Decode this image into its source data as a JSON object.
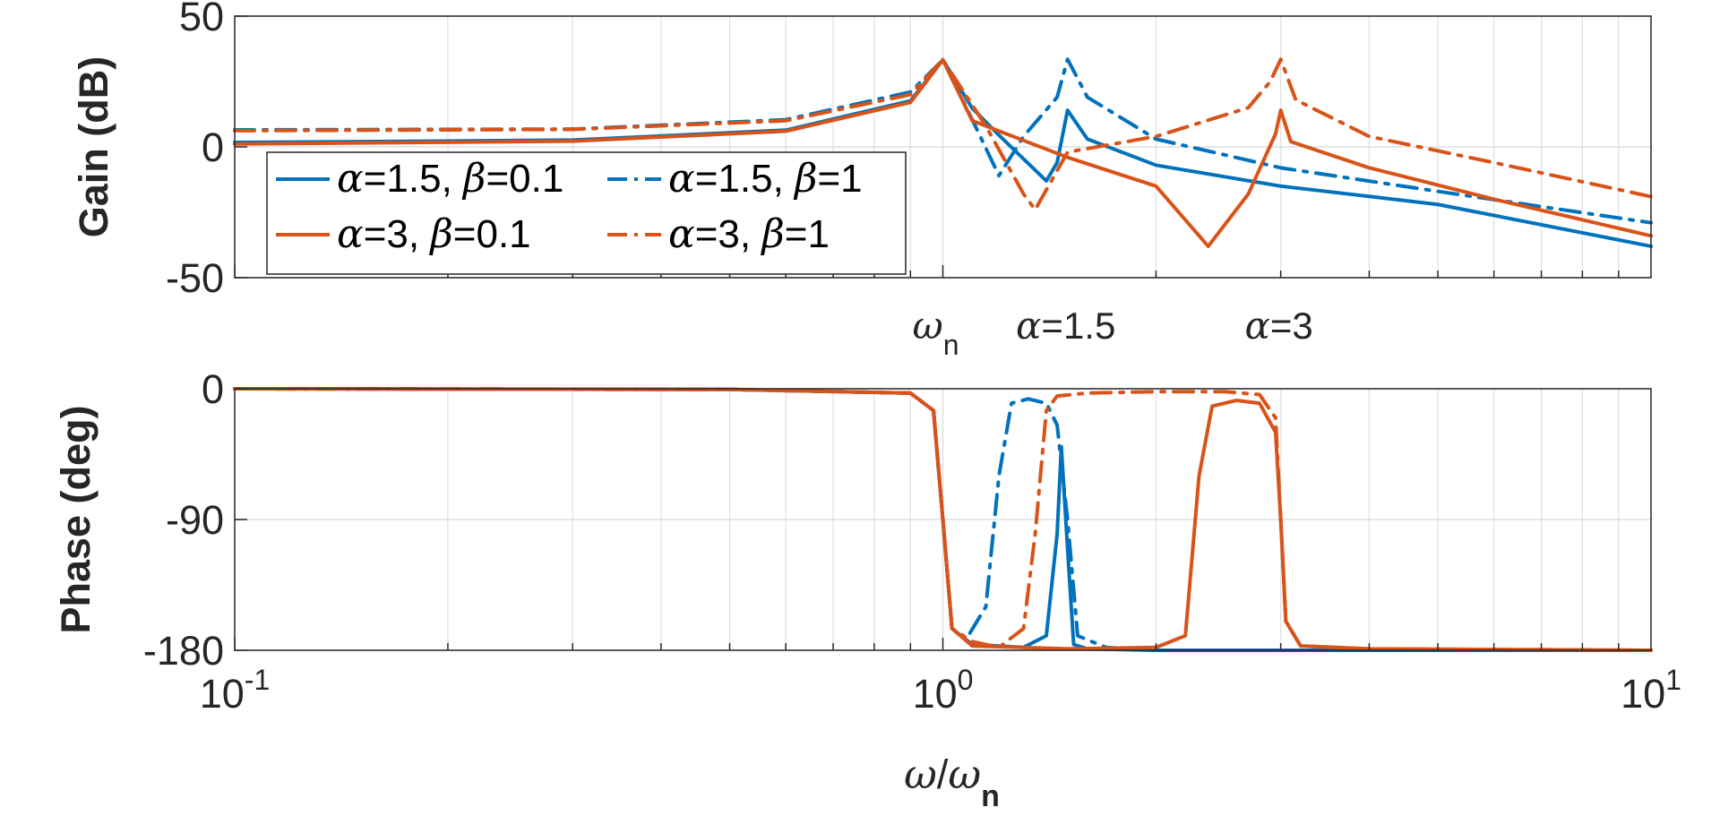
{
  "colors": {
    "blue": "#0072BD",
    "orange": "#D95319",
    "grid": "#DFDFDF",
    "axis": "#262626"
  },
  "chart_data": [
    {
      "type": "line",
      "title": "",
      "xscale": "log",
      "xlim": [
        0.1,
        10
      ],
      "ylim": [
        -50,
        50
      ],
      "ylabel": "Gain (dB)",
      "xlabel": "",
      "yticks": [
        {
          "value": -50,
          "label": "-50"
        },
        {
          "value": 0,
          "label": "0"
        },
        {
          "value": 50,
          "label": "50"
        }
      ],
      "grid": true,
      "legend": {
        "location": "bottom-left",
        "entries": [
          {
            "greek1": "α",
            "rest1": "=1.5, ",
            "greek2": "β",
            "rest2": "=0.1",
            "series": 0
          },
          {
            "greek1": "α",
            "rest1": "=1.5, ",
            "greek2": "β",
            "rest2": "=1",
            "series": 1
          },
          {
            "greek1": "α",
            "rest1": "=3, ",
            "greek2": "β",
            "rest2": "=0.1",
            "series": 2
          },
          {
            "greek1": "α",
            "rest1": "=3, ",
            "greek2": "β",
            "rest2": "=1",
            "series": 3
          }
        ]
      },
      "series": [
        {
          "name": "α=1.5, β=0.1",
          "color": "#0072BD",
          "dash": "solid",
          "x": [
            0.1,
            0.3,
            0.6,
            0.9,
            1.0,
            1.1,
            1.2,
            1.3,
            1.4,
            1.45,
            1.5,
            1.6,
            2.0,
            3.0,
            5.0,
            10.0
          ],
          "y": [
            1.7,
            2.6,
            6.4,
            17.6,
            33.3,
            14.8,
            4.5,
            -4.6,
            -13.0,
            -6.0,
            14.0,
            3.0,
            -7.0,
            -15.0,
            -22.0,
            -38.0
          ]
        },
        {
          "name": "α=1.5, β=1",
          "color": "#0072BD",
          "dash": "dashdot",
          "x": [
            0.1,
            0.3,
            0.6,
            0.9,
            1.0,
            1.1,
            1.2,
            1.3,
            1.45,
            1.5,
            1.6,
            2.0,
            3.0,
            5.0,
            10.0
          ],
          "y": [
            6.5,
            6.8,
            10.4,
            21.0,
            33.3,
            10.5,
            -11.0,
            4.0,
            19.0,
            33.5,
            19.0,
            3.0,
            -8.0,
            -17.0,
            -29.0
          ]
        },
        {
          "name": "α=3, β=0.1",
          "color": "#D95319",
          "dash": "solid",
          "x": [
            0.1,
            0.3,
            0.6,
            0.9,
            1.0,
            1.1,
            1.5,
            2.0,
            2.37,
            2.7,
            2.95,
            3.0,
            3.1,
            4.0,
            6.0,
            10.0
          ],
          "y": [
            1.1,
            2.2,
            6.0,
            17.0,
            33.3,
            10.0,
            -4.0,
            -15.0,
            -38.0,
            -18.0,
            5.0,
            14.0,
            2.0,
            -8.0,
            -20.0,
            -34.0
          ]
        },
        {
          "name": "α=3, β=1",
          "color": "#D95319",
          "dash": "dashdot",
          "x": [
            0.1,
            0.3,
            0.6,
            0.9,
            1.0,
            1.15,
            1.3,
            1.35,
            1.5,
            2.0,
            2.7,
            2.9,
            3.0,
            3.15,
            4.0,
            6.0,
            10.0
          ],
          "y": [
            6.2,
            6.7,
            10.0,
            20.0,
            33.3,
            8.0,
            -18.0,
            -24.0,
            -2.0,
            4.0,
            15.0,
            25.0,
            33.5,
            18.0,
            4.0,
            -6.0,
            -19.0
          ]
        }
      ]
    },
    {
      "type": "line",
      "title": "",
      "xscale": "log",
      "xlim": [
        0.1,
        10
      ],
      "ylim": [
        -180,
        0
      ],
      "ylabel": "Phase (deg)",
      "xlabel": "ω/ωn",
      "yticks": [
        {
          "value": -180,
          "label": "-180"
        },
        {
          "value": -90,
          "label": "-90"
        },
        {
          "value": 0,
          "label": "0"
        }
      ],
      "xticks": [
        {
          "value": 0.1,
          "base": "10",
          "exp": "-1"
        },
        {
          "value": 1,
          "base": "10",
          "exp": "0"
        },
        {
          "value": 10,
          "base": "10",
          "exp": "1"
        }
      ],
      "grid": true,
      "series": [
        {
          "name": "α=1.5, β=0.1",
          "color": "#0072BD",
          "dash": "solid",
          "x": [
            0.1,
            0.5,
            0.9,
            0.97,
            1.0,
            1.03,
            1.1,
            1.3,
            1.4,
            1.45,
            1.47,
            1.5,
            1.53,
            1.6,
            2.0,
            10.0
          ],
          "y": [
            0,
            -0.5,
            -3,
            -15,
            -90,
            -165,
            -176,
            -178,
            -170,
            -100,
            -40,
            -110,
            -176,
            -179,
            -180,
            -180
          ]
        },
        {
          "name": "α=1.5, β=1",
          "color": "#0072BD",
          "dash": "dashdot",
          "x": [
            0.1,
            0.5,
            0.9,
            0.97,
            1.0,
            1.03,
            1.08,
            1.15,
            1.2,
            1.25,
            1.32,
            1.4,
            1.45,
            1.5,
            1.55,
            1.7,
            2.0,
            10.0
          ],
          "y": [
            0,
            -0.5,
            -3,
            -15,
            -90,
            -165,
            -172,
            -150,
            -60,
            -10,
            -7,
            -10,
            -25,
            -90,
            -170,
            -178,
            -180,
            -180
          ]
        },
        {
          "name": "α=3, β=0.1",
          "color": "#D95319",
          "dash": "solid",
          "x": [
            0.1,
            0.5,
            0.9,
            0.97,
            1.0,
            1.03,
            1.1,
            1.5,
            2.0,
            2.2,
            2.3,
            2.4,
            2.6,
            2.8,
            2.95,
            3.0,
            3.05,
            3.2,
            4.0,
            10.0
          ],
          "y": [
            0,
            -0.5,
            -3,
            -15,
            -90,
            -165,
            -177,
            -179,
            -178,
            -170,
            -60,
            -12,
            -8,
            -10,
            -30,
            -90,
            -160,
            -177,
            -179,
            -180
          ]
        },
        {
          "name": "α=3, β=1",
          "color": "#D95319",
          "dash": "dashdot",
          "x": [
            0.1,
            0.5,
            0.9,
            0.97,
            1.0,
            1.03,
            1.1,
            1.2,
            1.3,
            1.35,
            1.4,
            1.45,
            1.6,
            2.0,
            2.5,
            2.8,
            2.95,
            3.0,
            3.05,
            3.2,
            4.0,
            10.0
          ],
          "y": [
            0,
            -0.5,
            -3,
            -15,
            -90,
            -165,
            -174,
            -178,
            -165,
            -100,
            -15,
            -5,
            -3,
            -2,
            -2,
            -4,
            -20,
            -90,
            -160,
            -177,
            -179,
            -180
          ]
        }
      ]
    }
  ],
  "annotations": {
    "omega_n": {
      "greek": "ω",
      "sub": "n",
      "x_value": 1.0
    },
    "alpha_15": {
      "greek": "α",
      "rest": "=1.5",
      "x_value": 1.5
    },
    "alpha_3": {
      "greek": "α",
      "rest": "=3",
      "x_value": 3.0
    }
  },
  "xaxis_title": {
    "greek1": "ω",
    "slash": "/",
    "greek2": "ω",
    "sub": "n"
  }
}
